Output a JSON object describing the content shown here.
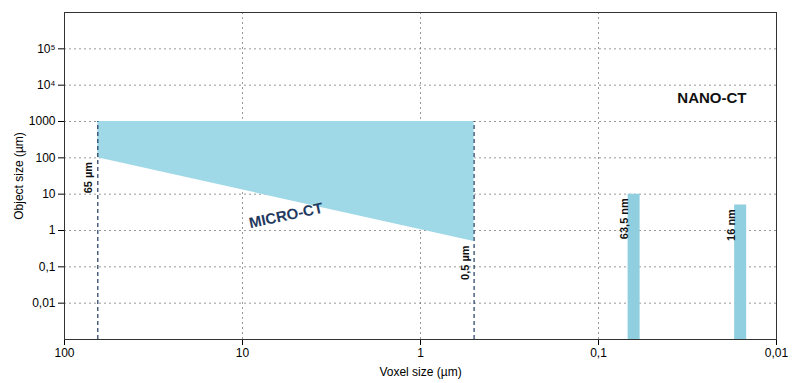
{
  "chart_data": {
    "type": "area",
    "x_label": "Voxel size (µm)",
    "y_label": "Object size (µm)",
    "log": true,
    "grid": true,
    "xlim": [
      100,
      0.01
    ],
    "ylim": [
      0.001,
      1000000
    ],
    "xticks": [
      100,
      10,
      1,
      {
        "value": 0.1,
        "label": "0,1"
      },
      {
        "value": 0.01,
        "label": "0,01"
      }
    ],
    "yticks": [
      {
        "value": 0.01,
        "label": "0,01"
      },
      {
        "value": 0.1,
        "label": "0,1"
      },
      1,
      10,
      100,
      1000,
      {
        "value": 10000,
        "label": "10⁴"
      },
      {
        "value": 100000,
        "label": "10⁵"
      }
    ],
    "series": [
      {
        "name": "MICRO-CT",
        "type": "area",
        "color": "#9fd8e6",
        "x": [
          65,
          0.5
        ],
        "values": [
          1000,
          1000
        ],
        "lower": [
          100,
          0.5
        ]
      },
      {
        "name": "NANO-CT",
        "type": "bar",
        "color": "#8fcfe0",
        "x": [
          0.0635,
          0.016
        ],
        "values": [
          10,
          5
        ]
      }
    ],
    "annotations": [
      {
        "x": 65,
        "label": "65 µm"
      },
      {
        "x": 0.5,
        "label": "0,5 µm"
      },
      {
        "x": 0.0635,
        "label": "63,5 nm"
      },
      {
        "x": 0.016,
        "label": "16 nm"
      }
    ]
  }
}
